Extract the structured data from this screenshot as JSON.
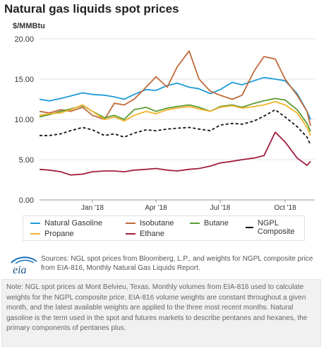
{
  "title": "Natural gas liquids spot prices",
  "y_unit": "$/MMBtu",
  "source": "Sources: NGL spot prices from Bloomberg, L.P., and weights for NGPL composite price from EIA-816, Monthly Natural Gas Liquids Report.",
  "note": "Note: NGL spot prices at Mont Belvieu, Texas. Monthly volumes from EIA-816 used to calculate weights for the NGPL composite price. EIA-816 volume weights are constant throughout a given month, and the latest available weights are applied to the three most recent months. Natural gasoline is the term used in the spot and futures markets to describe pentanes and hexanes, the primary components of pentanes plus.",
  "logo_text": "eia",
  "chart_data": {
    "type": "line",
    "title": "Natural gas liquids spot prices",
    "ylabel": "$/MMBtu",
    "xlabel": "",
    "ylim": [
      0,
      20
    ],
    "yticks": [
      "0.00",
      "5.00",
      "10.00",
      "15.00",
      "20.00"
    ],
    "xticks": [
      {
        "date": "2018-01-15",
        "label": "Jan '18"
      },
      {
        "date": "2018-04-15",
        "label": "Apr '18"
      },
      {
        "date": "2018-07-15",
        "label": "Jul '18"
      },
      {
        "date": "2018-10-15",
        "label": "Oct '18"
      }
    ],
    "grid": true,
    "legend_position": "bottom",
    "x": [
      "2017-11-01",
      "2017-11-15",
      "2017-12-01",
      "2017-12-15",
      "2018-01-01",
      "2018-01-15",
      "2018-02-01",
      "2018-02-15",
      "2018-03-01",
      "2018-03-15",
      "2018-04-01",
      "2018-04-15",
      "2018-05-01",
      "2018-05-15",
      "2018-06-01",
      "2018-06-15",
      "2018-07-01",
      "2018-07-15",
      "2018-08-01",
      "2018-08-15",
      "2018-09-01",
      "2018-09-15",
      "2018-10-01",
      "2018-10-15",
      "2018-11-01",
      "2018-11-15",
      "2018-11-20"
    ],
    "series": [
      {
        "name": "Natural Gasoline",
        "color": "#1f9bd7",
        "dashed": false,
        "values": [
          12.5,
          12.3,
          12.6,
          12.9,
          13.3,
          13.1,
          13.0,
          12.8,
          12.5,
          13.1,
          13.7,
          13.6,
          14.2,
          14.5,
          14.0,
          13.8,
          13.2,
          13.7,
          14.6,
          14.3,
          14.8,
          15.2,
          15.0,
          14.8,
          13.2,
          11.0,
          10.0
        ]
      },
      {
        "name": "Isobutane",
        "color": "#c0693a",
        "dashed": false,
        "values": [
          11.0,
          10.8,
          11.2,
          11.0,
          11.5,
          10.5,
          10.0,
          12.0,
          11.8,
          12.5,
          14.0,
          15.3,
          14.0,
          16.5,
          18.5,
          15.0,
          13.5,
          13.0,
          12.5,
          13.0,
          16.0,
          17.8,
          17.5,
          15.0,
          13.0,
          11.0,
          9.2
        ]
      },
      {
        "name": "Butane",
        "color": "#5b9b33",
        "dashed": false,
        "values": [
          10.3,
          10.6,
          11.0,
          11.3,
          11.7,
          11.0,
          10.2,
          10.5,
          10.0,
          11.2,
          11.5,
          11.0,
          11.4,
          11.6,
          11.8,
          11.5,
          11.0,
          11.6,
          11.8,
          11.5,
          12.0,
          12.3,
          12.6,
          12.4,
          11.2,
          9.5,
          8.5
        ]
      },
      {
        "name": "NGPL Composite",
        "color": "#111111",
        "dashed": true,
        "values": [
          8.0,
          8.0,
          8.2,
          8.6,
          9.0,
          8.7,
          8.0,
          8.2,
          7.8,
          8.3,
          8.7,
          8.6,
          8.8,
          8.9,
          9.0,
          8.8,
          8.6,
          9.3,
          9.5,
          9.4,
          9.8,
          10.4,
          11.2,
          10.3,
          9.1,
          7.8,
          6.8
        ]
      },
      {
        "name": "Propane",
        "color": "#f2b32a",
        "dashed": false,
        "values": [
          10.5,
          10.7,
          10.8,
          11.2,
          11.8,
          11.0,
          10.0,
          10.3,
          9.8,
          10.5,
          11.0,
          10.7,
          11.2,
          11.4,
          11.6,
          11.3,
          11.0,
          11.5,
          11.7,
          11.4,
          11.6,
          11.8,
          12.2,
          11.8,
          10.8,
          9.0,
          8.0
        ]
      },
      {
        "name": "Ethane",
        "color": "#a21f3f",
        "dashed": false,
        "values": [
          3.8,
          3.7,
          3.5,
          3.1,
          3.2,
          3.5,
          3.6,
          3.6,
          3.5,
          3.7,
          3.8,
          3.9,
          3.7,
          3.6,
          3.8,
          3.9,
          4.2,
          4.6,
          4.8,
          5.0,
          5.2,
          5.5,
          8.4,
          7.2,
          5.2,
          4.3,
          4.8
        ]
      }
    ]
  }
}
